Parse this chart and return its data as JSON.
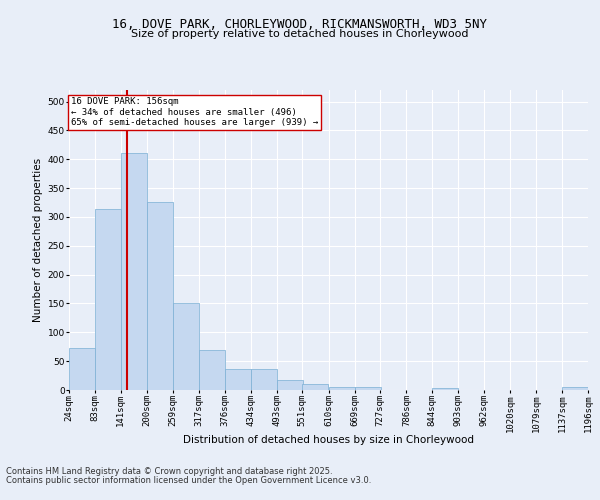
{
  "title_line1": "16, DOVE PARK, CHORLEYWOOD, RICKMANSWORTH, WD3 5NY",
  "title_line2": "Size of property relative to detached houses in Chorleywood",
  "xlabel": "Distribution of detached houses by size in Chorleywood",
  "ylabel": "Number of detached properties",
  "bar_color": "#c5d8f0",
  "bar_edge_color": "#7aafd4",
  "vline_x": 156,
  "vline_color": "#cc0000",
  "annotation_text": "16 DOVE PARK: 156sqm\n← 34% of detached houses are smaller (496)\n65% of semi-detached houses are larger (939) →",
  "annotation_box_color": "#ffffff",
  "annotation_box_edge_color": "#cc0000",
  "footer_line1": "Contains HM Land Registry data © Crown copyright and database right 2025.",
  "footer_line2": "Contains public sector information licensed under the Open Government Licence v3.0.",
  "bins": [
    24,
    83,
    141,
    200,
    259,
    317,
    376,
    434,
    493,
    551,
    610,
    669,
    727,
    786,
    844,
    903,
    962,
    1020,
    1079,
    1137,
    1196
  ],
  "counts": [
    73,
    313,
    410,
    325,
    150,
    70,
    37,
    36,
    18,
    11,
    6,
    6,
    0,
    0,
    3,
    0,
    0,
    0,
    0,
    5
  ],
  "ylim": [
    0,
    520
  ],
  "yticks": [
    0,
    50,
    100,
    150,
    200,
    250,
    300,
    350,
    400,
    450,
    500
  ],
  "background_color": "#e8eef8",
  "plot_bg_color": "#e8eef8",
  "grid_color": "#ffffff",
  "title_fontsize": 9,
  "subtitle_fontsize": 8,
  "axis_label_fontsize": 7.5,
  "tick_fontsize": 6.5,
  "footer_fontsize": 6
}
